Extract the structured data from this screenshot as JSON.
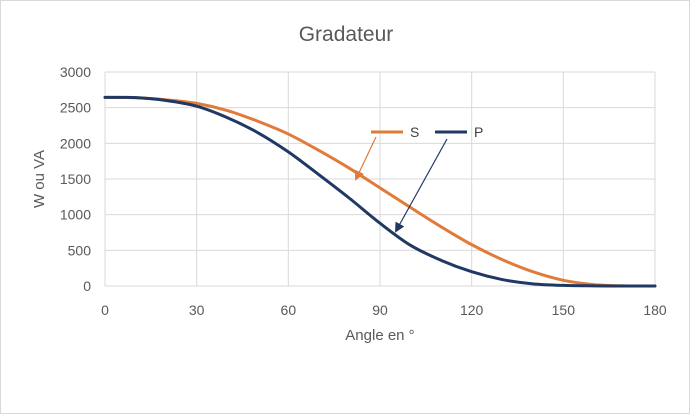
{
  "chart_data": {
    "type": "line",
    "title": "Gradateur",
    "xlabel": "Angle en °",
    "ylabel": "W ou VA",
    "xlim": [
      0,
      180
    ],
    "ylim": [
      0,
      3000
    ],
    "xticks": [
      0,
      30,
      60,
      90,
      120,
      150,
      180
    ],
    "yticks": [
      0,
      500,
      1000,
      1500,
      2000,
      2500,
      3000
    ],
    "grid": true,
    "legend_placement": "inside-top-center",
    "series": [
      {
        "name": "S",
        "color": "#E07B39",
        "x": [
          0,
          10,
          20,
          30,
          40,
          50,
          60,
          70,
          80,
          90,
          100,
          110,
          120,
          130,
          140,
          150,
          160,
          170,
          180
        ],
        "values": [
          2645,
          2640,
          2610,
          2560,
          2460,
          2310,
          2130,
          1900,
          1650,
          1375,
          1100,
          830,
          580,
          370,
          200,
          80,
          20,
          2,
          0
        ]
      },
      {
        "name": "P",
        "color": "#1F3864",
        "x": [
          0,
          10,
          20,
          30,
          40,
          50,
          60,
          70,
          80,
          90,
          100,
          110,
          120,
          130,
          140,
          150,
          160,
          170,
          180
        ],
        "values": [
          2645,
          2640,
          2600,
          2520,
          2360,
          2150,
          1880,
          1560,
          1230,
          880,
          570,
          360,
          200,
          90,
          30,
          8,
          2,
          0,
          0
        ]
      }
    ]
  }
}
